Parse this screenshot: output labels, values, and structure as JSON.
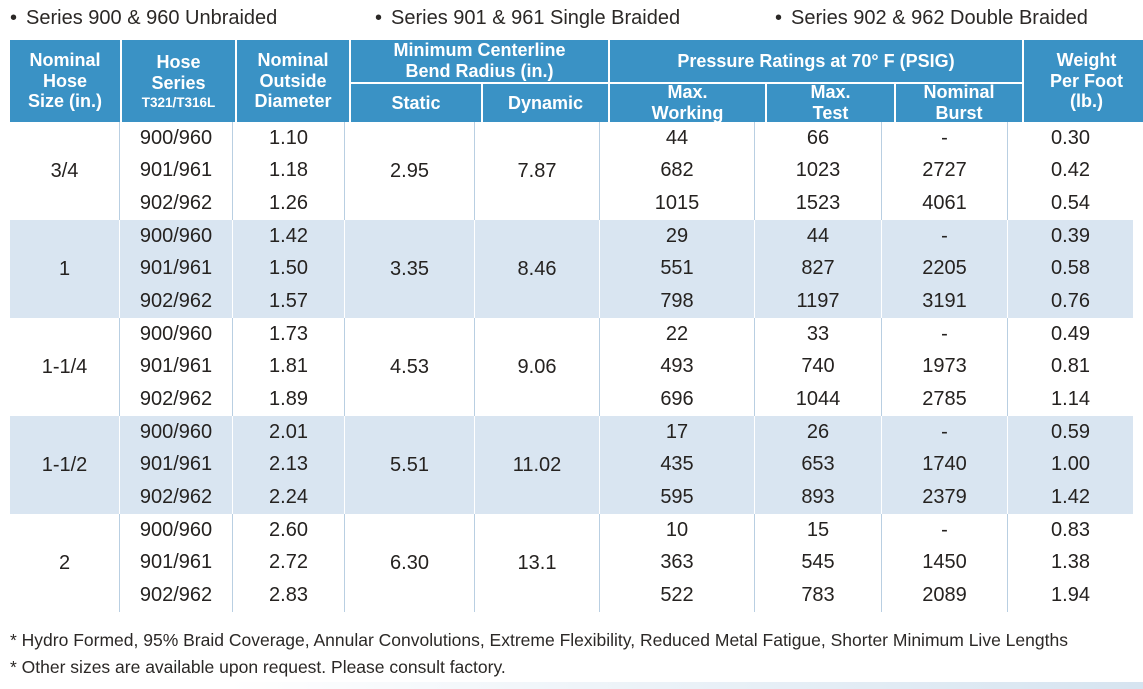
{
  "bullet_icon": "•",
  "bullets": [
    {
      "label": "Series 900 & 960 Unbraided"
    },
    {
      "label": "Series 901 & 961 Single Braided"
    },
    {
      "label": "Series 902 & 962 Double Braided"
    }
  ],
  "table": {
    "headers": {
      "nominal_hose_size": "Nominal\nHose\nSize (in.)",
      "hose_series": "Hose\nSeries",
      "hose_series_sub": "T321/T316L",
      "nominal_outside_diameter": "Nominal\nOutside\nDiameter",
      "bend_radius_group": "Minimum Centerline\nBend Radius (in.)",
      "static": "Static",
      "dynamic": "Dynamic",
      "pressure_group": "Pressure Ratings at 70° F (PSIG)",
      "max_working": "Max.\nWorking",
      "max_test": "Max.\nTest",
      "nominal_burst": "Nominal\nBurst",
      "weight_per_foot": "Weight\nPer Foot\n(lb.)"
    },
    "groups": [
      {
        "size": "3/4",
        "static": "2.95",
        "dynamic": "7.87",
        "rows": [
          {
            "series": "900/960",
            "od": "1.10",
            "working": "44",
            "test": "66",
            "burst": "-",
            "weight": "0.30"
          },
          {
            "series": "901/961",
            "od": "1.18",
            "working": "682",
            "test": "1023",
            "burst": "2727",
            "weight": "0.42"
          },
          {
            "series": "902/962",
            "od": "1.26",
            "working": "1015",
            "test": "1523",
            "burst": "4061",
            "weight": "0.54"
          }
        ]
      },
      {
        "size": "1",
        "static": "3.35",
        "dynamic": "8.46",
        "rows": [
          {
            "series": "900/960",
            "od": "1.42",
            "working": "29",
            "test": "44",
            "burst": "-",
            "weight": "0.39"
          },
          {
            "series": "901/961",
            "od": "1.50",
            "working": "551",
            "test": "827",
            "burst": "2205",
            "weight": "0.58"
          },
          {
            "series": "902/962",
            "od": "1.57",
            "working": "798",
            "test": "1197",
            "burst": "3191",
            "weight": "0.76"
          }
        ]
      },
      {
        "size": "1-1/4",
        "static": "4.53",
        "dynamic": "9.06",
        "rows": [
          {
            "series": "900/960",
            "od": "1.73",
            "working": "22",
            "test": "33",
            "burst": "-",
            "weight": "0.49"
          },
          {
            "series": "901/961",
            "od": "1.81",
            "working": "493",
            "test": "740",
            "burst": "1973",
            "weight": "0.81"
          },
          {
            "series": "902/962",
            "od": "1.89",
            "working": "696",
            "test": "1044",
            "burst": "2785",
            "weight": "1.14"
          }
        ]
      },
      {
        "size": "1-1/2",
        "static": "5.51",
        "dynamic": "11.02",
        "rows": [
          {
            "series": "900/960",
            "od": "2.01",
            "working": "17",
            "test": "26",
            "burst": "-",
            "weight": "0.59"
          },
          {
            "series": "901/961",
            "od": "2.13",
            "working": "435",
            "test": "653",
            "burst": "1740",
            "weight": "1.00"
          },
          {
            "series": "902/962",
            "od": "2.24",
            "working": "595",
            "test": "893",
            "burst": "2379",
            "weight": "1.42"
          }
        ]
      },
      {
        "size": "2",
        "static": "6.30",
        "dynamic": "13.1",
        "rows": [
          {
            "series": "900/960",
            "od": "2.60",
            "working": "10",
            "test": "15",
            "burst": "-",
            "weight": "0.83"
          },
          {
            "series": "901/961",
            "od": "2.72",
            "working": "363",
            "test": "545",
            "burst": "1450",
            "weight": "1.38"
          },
          {
            "series": "902/962",
            "od": "2.83",
            "working": "522",
            "test": "783",
            "burst": "2089",
            "weight": "1.94"
          }
        ]
      }
    ]
  },
  "footnotes": [
    "* Hydro Formed, 95% Braid Coverage, Annular Convolutions, Extreme Flexibility, Reduced Metal Fatigue, Shorter Minimum Live Lengths",
    "* Other sizes are available upon request. Please consult factory."
  ],
  "colors": {
    "header_blue": "#3a92c5",
    "band_blue": "#d9e5f1",
    "text_dark": "#252220",
    "divider_plain": "#b9cfe2",
    "divider_band": "#ffffff"
  }
}
